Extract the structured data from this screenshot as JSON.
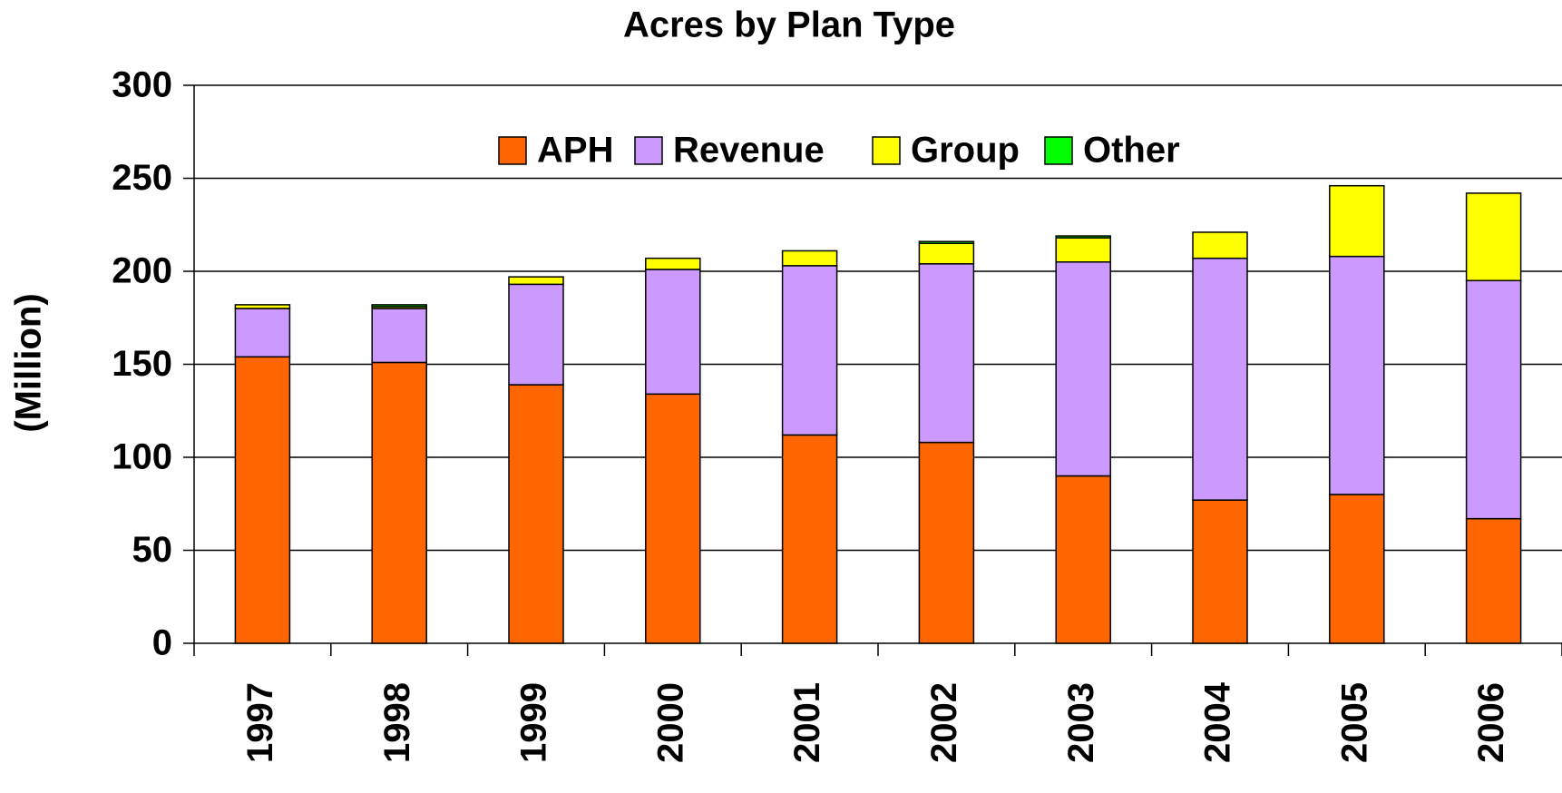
{
  "chart_data": {
    "type": "stacked_bar",
    "title": "Acres by Plan Type",
    "y_label": "(Million)",
    "categories": [
      "1997",
      "1998",
      "1999",
      "2000",
      "2001",
      "2002",
      "2003",
      "2004",
      "2005",
      "2006"
    ],
    "series": [
      {
        "name": "APH",
        "color": "#ff6600",
        "values": [
          154,
          151,
          139,
          134,
          112,
          108,
          90,
          77,
          80,
          67
        ]
      },
      {
        "name": "Revenue",
        "color": "#cc99ff",
        "values": [
          26,
          29,
          54,
          67,
          91,
          96,
          115,
          130,
          128,
          128
        ]
      },
      {
        "name": "Group",
        "color": "#ffff00",
        "values": [
          2,
          1,
          4,
          6,
          8,
          11,
          13,
          14,
          38,
          47
        ]
      },
      {
        "name": "Other",
        "color": "#00ff00",
        "values": [
          0,
          1,
          0,
          0,
          0,
          1,
          1,
          0,
          0,
          0
        ]
      }
    ],
    "ylim": [
      0,
      300
    ],
    "yticks": [
      0,
      50,
      100,
      150,
      200,
      250,
      300
    ],
    "grid": true,
    "legend": "top"
  }
}
